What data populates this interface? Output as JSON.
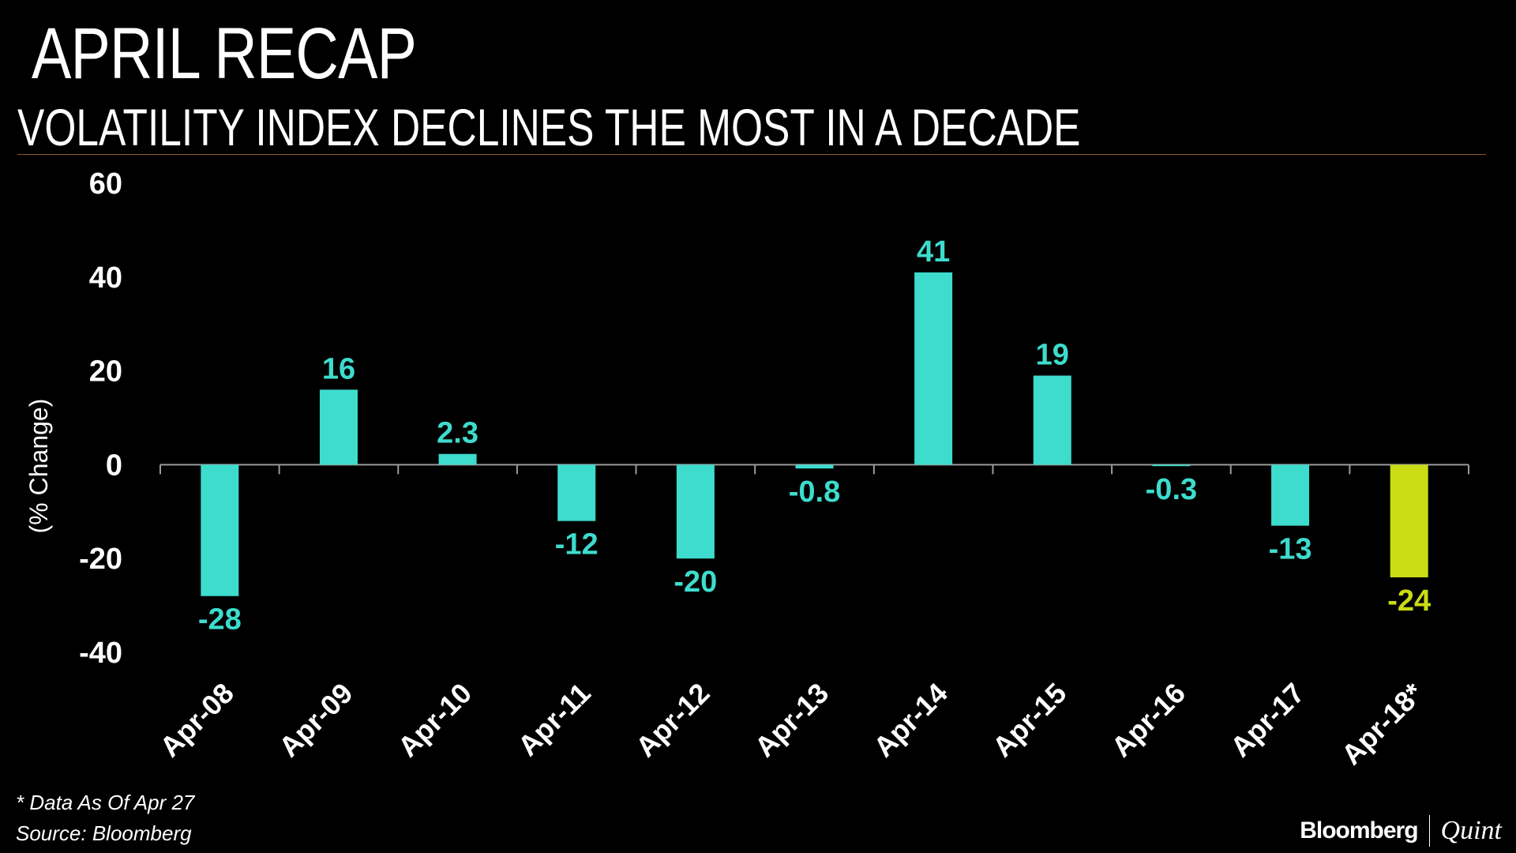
{
  "title": "APRIL RECAP",
  "subtitle": "VOLATILITY INDEX DECLINES THE MOST IN A DECADE",
  "footnote": "* Data As Of Apr 27",
  "source": "Source: Bloomberg",
  "brand": {
    "primary": "Bloomberg",
    "secondary": "Quint"
  },
  "colors": {
    "bar": "#3ddccd",
    "highlight": "#c9dc14",
    "background": "#000000",
    "rule": "#8a5a2b"
  },
  "chart_data": {
    "type": "bar",
    "title": "VOLATILITY INDEX DECLINES THE MOST IN A DECADE",
    "xlabel": "",
    "ylabel": "(% Change)",
    "categories": [
      "Apr-08",
      "Apr-09",
      "Apr-10",
      "Apr-11",
      "Apr-12",
      "Apr-13",
      "Apr-14",
      "Apr-15",
      "Apr-16",
      "Apr-17",
      "Apr-18*"
    ],
    "values": [
      -28,
      16,
      2.3,
      -12,
      -20,
      -0.8,
      41,
      19,
      -0.3,
      -13,
      -24
    ],
    "value_labels": [
      "-28",
      "16",
      "2.3",
      "-12",
      "-20",
      "-0.8",
      "41",
      "19",
      "-0.3",
      "-13",
      "-24"
    ],
    "highlight_index": 10,
    "ylim": [
      -40,
      60
    ],
    "yticks": [
      -40,
      -20,
      0,
      20,
      40,
      60
    ],
    "ytick_labels": [
      "-40",
      "-20",
      "0",
      "20",
      "40",
      "60"
    ],
    "grid": false
  }
}
